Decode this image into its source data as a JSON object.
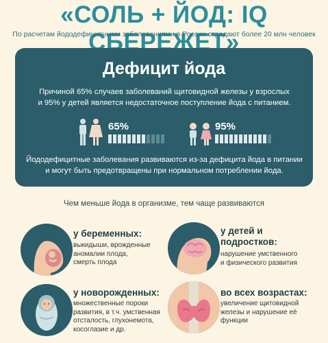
{
  "title": "«СОЛЬ + ЙОД: IQ СБЕРЕЖЕТ»",
  "subtitle": "По расчетам йододефицитными заболеваниями в России страдают более 20 млн человек",
  "deficit": {
    "title": "Дефицит йода",
    "line1": "Причиной 65% случаев заболеваний щитовидной железы у взрослых",
    "line2": "и 95% у детей является недостаточное поступление йода с питанием.",
    "adults_pct_label": "65%",
    "adults_fraction": 0.65,
    "children_pct_label": "95%",
    "children_fraction": 0.95,
    "bottom1": "Йододефицитные заболевания развиваются из-за дефицита йода в питании",
    "bottom2": "и могут быть предотвращены при нормальном потреблении йода."
  },
  "risk_heading": "Чем меньше йода в организме, тем чаще развиваются",
  "groups": {
    "pregnant": {
      "title": "у беременных:",
      "text1": "выкидыши, врожденные",
      "text2": "аномалии плода,",
      "text3": "смерть плода"
    },
    "children": {
      "title1": "у детей и",
      "title2": "подростков:",
      "text1": "нарушение умственного",
      "text2": "и физического развития"
    },
    "newborns": {
      "title": "у новорожденных:",
      "text1": "множественные пороки",
      "text2": "развития, в т.ч. умственная",
      "text3": "отсталость, глухонемота,",
      "text4": "косоглазие и др."
    },
    "all_ages": {
      "title": "во всех возрастах:",
      "text1": "увеличение щитовидной",
      "text2": "железы и нарушение её",
      "text3": "функции"
    }
  },
  "colors": {
    "accent": "#2b8e9c",
    "panel": "#2b5d6a",
    "background": "#fdf5e4",
    "skin": "#f2c6a8",
    "thyroid": "#e8788a"
  }
}
